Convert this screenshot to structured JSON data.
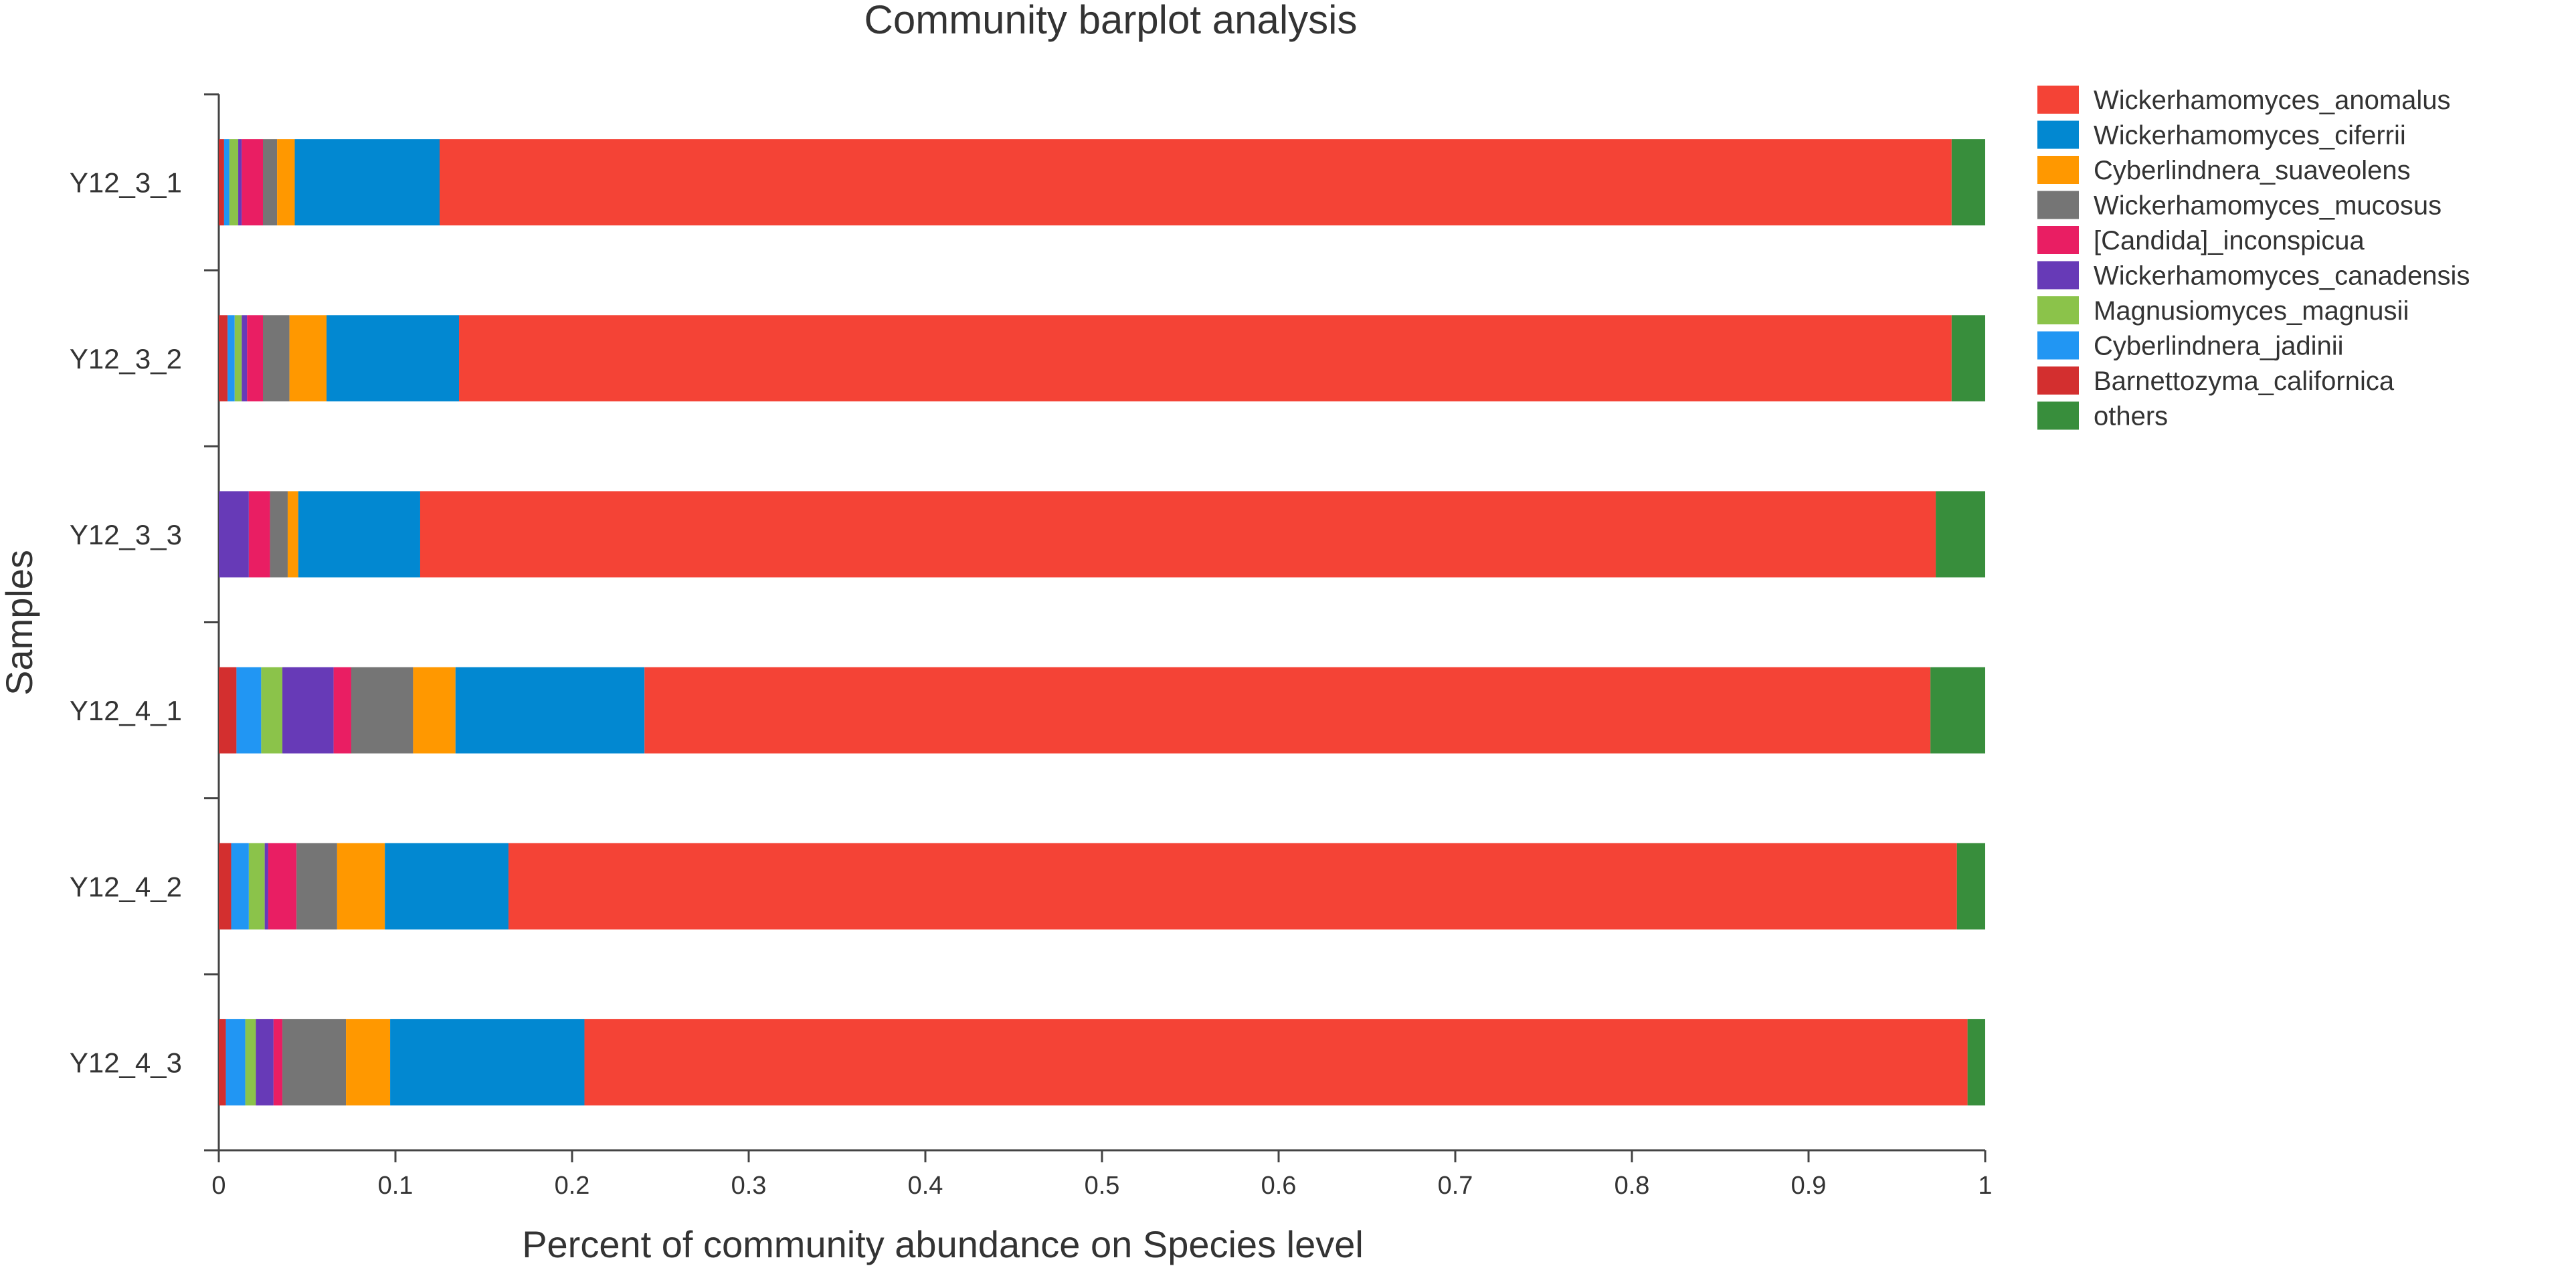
{
  "chart_data": {
    "type": "bar",
    "orientation": "horizontal",
    "stacked": true,
    "title": "Community barplot analysis",
    "xlabel": "Percent of community abundance on Species level",
    "ylabel": "Samples",
    "xlim": [
      0,
      1
    ],
    "xticks": [
      "0",
      "0.1",
      "0.2",
      "0.3",
      "0.4",
      "0.5",
      "0.6",
      "0.7",
      "0.8",
      "0.9",
      "1"
    ],
    "grid": false,
    "legend_position": "top-right",
    "categories": [
      "Y12_3_1",
      "Y12_3_2",
      "Y12_3_3",
      "Y12_4_1",
      "Y12_4_2",
      "Y12_4_3"
    ],
    "series": [
      {
        "name": "Barnettozyma_californica",
        "color": "#d32f2f",
        "values": [
          0.003,
          0.005,
          0.0,
          0.01,
          0.007,
          0.004
        ]
      },
      {
        "name": "Cyberlindnera_jadinii",
        "color": "#2196f3",
        "values": [
          0.003,
          0.004,
          0.0,
          0.014,
          0.01,
          0.011
        ]
      },
      {
        "name": "Magnusiomyces_magnusii",
        "color": "#8bc34a",
        "values": [
          0.005,
          0.004,
          0.0,
          0.012,
          0.009,
          0.006
        ]
      },
      {
        "name": "Wickerhamomyces_canadensis",
        "color": "#673ab7",
        "values": [
          0.002,
          0.003,
          0.017,
          0.029,
          0.002,
          0.01
        ]
      },
      {
        "name": "[Candida]_inconspicua",
        "color": "#e91e63",
        "values": [
          0.012,
          0.009,
          0.012,
          0.01,
          0.016,
          0.005
        ]
      },
      {
        "name": "Wickerhamomyces_mucosus",
        "color": "#757575",
        "values": [
          0.008,
          0.015,
          0.01,
          0.035,
          0.023,
          0.036
        ]
      },
      {
        "name": "Cyberlindnera_suaveolens",
        "color": "#ff9800",
        "values": [
          0.01,
          0.021,
          0.006,
          0.024,
          0.027,
          0.025
        ]
      },
      {
        "name": "Wickerhamomyces_ciferrii",
        "color": "#0288d1",
        "values": [
          0.082,
          0.075,
          0.069,
          0.107,
          0.07,
          0.11
        ]
      },
      {
        "name": "Wickerhamomyces_anomalus",
        "color": "#f44336",
        "values": [
          0.856,
          0.845,
          0.858,
          0.728,
          0.82,
          0.783
        ]
      },
      {
        "name": "others",
        "color": "#388e3c",
        "values": [
          0.019,
          0.019,
          0.028,
          0.031,
          0.016,
          0.01
        ]
      }
    ],
    "legend_order": [
      "Wickerhamomyces_anomalus",
      "Wickerhamomyces_ciferrii",
      "Cyberlindnera_suaveolens",
      "Wickerhamomyces_mucosus",
      "[Candida]_inconspicua",
      "Wickerhamomyces_canadensis",
      "Magnusiomyces_magnusii",
      "Cyberlindnera_jadinii",
      "Barnettozyma_californica",
      "others"
    ]
  }
}
